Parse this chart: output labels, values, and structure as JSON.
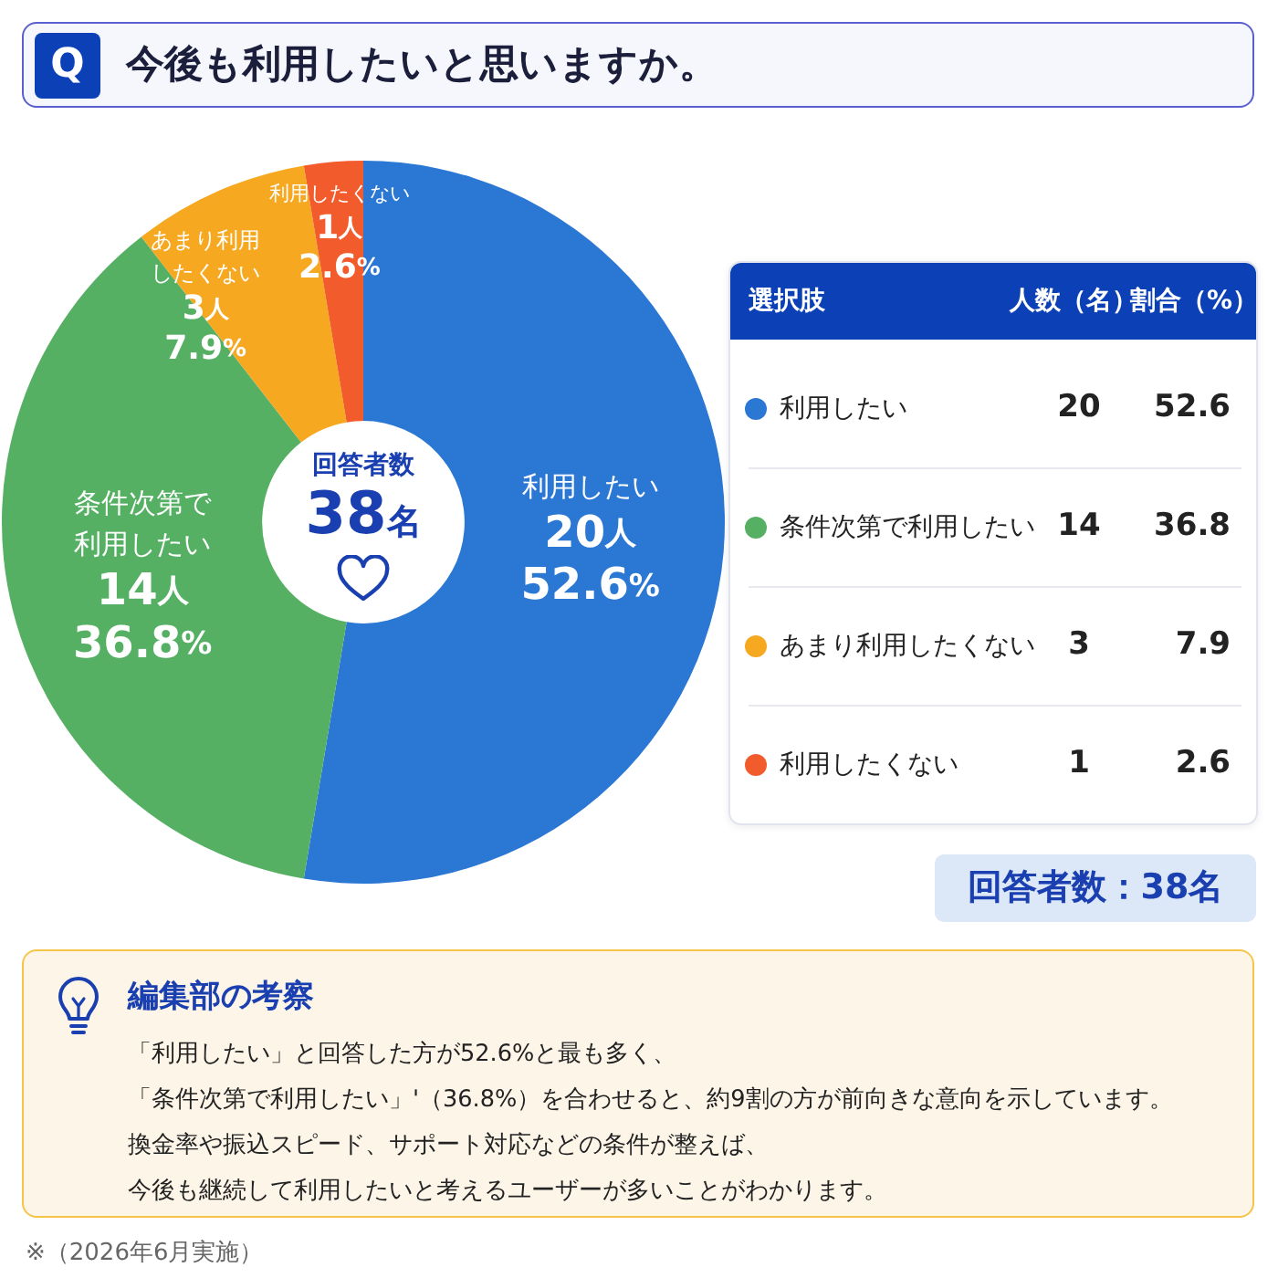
{
  "chart_data": {
    "type": "donut",
    "title": "今後も利用したいと思いますか。",
    "categories": [
      "利用したい",
      "条件次第で利用したい",
      "あまり利用したくない",
      "利用したくない"
    ],
    "values": [
      20,
      14,
      3,
      1
    ],
    "colors": [
      "#2a77d4",
      "#56b064",
      "#f7a821",
      "#f25b2b"
    ],
    "value_labels": [
      "20人\n52.6%",
      "14人\n36.8%",
      "3人\n7.9%",
      "1人\n2.6%"
    ],
    "legend": "right",
    "annotations": [
      "Q",
      "回答者数",
      "38名",
      "選択肢",
      "人数（名）",
      "割合（%）",
      "20",
      "14",
      "3",
      "1",
      "52.6",
      "36.8",
      "7.9",
      "2.6",
      "回答者数：38名",
      "編集部の考察",
      "「利用したい」と回答した方が52.6%と最も多く、",
      "「条件次第で利用したい」'（36.8%）を合わせると、約9割の方が前向きな意向を示しています。",
      "換金率や振込スピード、サポート対応などの条件が整えば、",
      "今後も継続して利用したいと考えるユーザーが多いことがわかります。",
      "※（2026年6月実施）"
    ]
  }
}
